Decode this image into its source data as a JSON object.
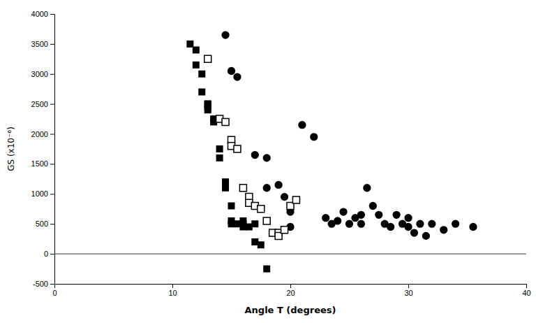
{
  "chart_data": {
    "type": "scatter",
    "xlabel": "Angle T (degrees)",
    "ylabel": "GS (x10⁻⁶)",
    "xlim": [
      0,
      40
    ],
    "ylim": [
      -500,
      4000
    ],
    "xticks": [
      0,
      10,
      20,
      30,
      40
    ],
    "yticks": [
      -500,
      0,
      500,
      1000,
      1500,
      2000,
      2500,
      3000,
      3500,
      4000
    ],
    "grid": false,
    "hlines": [
      0
    ],
    "series": [
      {
        "color": "black",
        "marker": "circle",
        "x": [
          14.5,
          15,
          15.5,
          17,
          18,
          18,
          19,
          19.5,
          20,
          20,
          21,
          22,
          23,
          23.5,
          24,
          24.5,
          25,
          25.5,
          26,
          26,
          26.5,
          27,
          27.5,
          28,
          28.5,
          29,
          29.5,
          30,
          30,
          30.5,
          31,
          31.5,
          32,
          33,
          34,
          35.5
        ],
        "values": [
          3650,
          3050,
          2950,
          1650,
          1600,
          1100,
          1150,
          950,
          700,
          450,
          2150,
          1950,
          600,
          500,
          550,
          700,
          500,
          600,
          650,
          500,
          1100,
          800,
          650,
          500,
          450,
          650,
          500,
          450,
          600,
          350,
          500,
          300,
          500,
          400,
          500,
          450
        ]
      },
      {
        "color": "black",
        "marker": "square",
        "x": [
          11.5,
          12,
          12,
          12.5,
          12.5,
          13,
          13,
          13,
          13,
          13.5,
          13.5,
          14,
          14,
          14.5,
          14.5,
          15,
          15,
          15,
          15.5,
          16,
          16,
          16,
          16.5,
          17,
          17,
          17.5,
          18
        ],
        "values": [
          3500,
          3400,
          3150,
          3000,
          2700,
          2500,
          2500,
          2450,
          2400,
          2250,
          2200,
          1750,
          1600,
          1200,
          1100,
          800,
          550,
          500,
          500,
          550,
          500,
          450,
          450,
          500,
          200,
          150,
          -250
        ]
      },
      {
        "color": "black",
        "marker": "square-open",
        "x": [
          13,
          14,
          14.5,
          15,
          15,
          15.5,
          16,
          16.5,
          16.5,
          17,
          17.5,
          18,
          18.5,
          19,
          19,
          19.5,
          20,
          20.5
        ],
        "values": [
          3250,
          2250,
          2200,
          1900,
          1800,
          1750,
          1100,
          950,
          850,
          800,
          750,
          550,
          350,
          350,
          300,
          400,
          800,
          900
        ]
      }
    ]
  }
}
